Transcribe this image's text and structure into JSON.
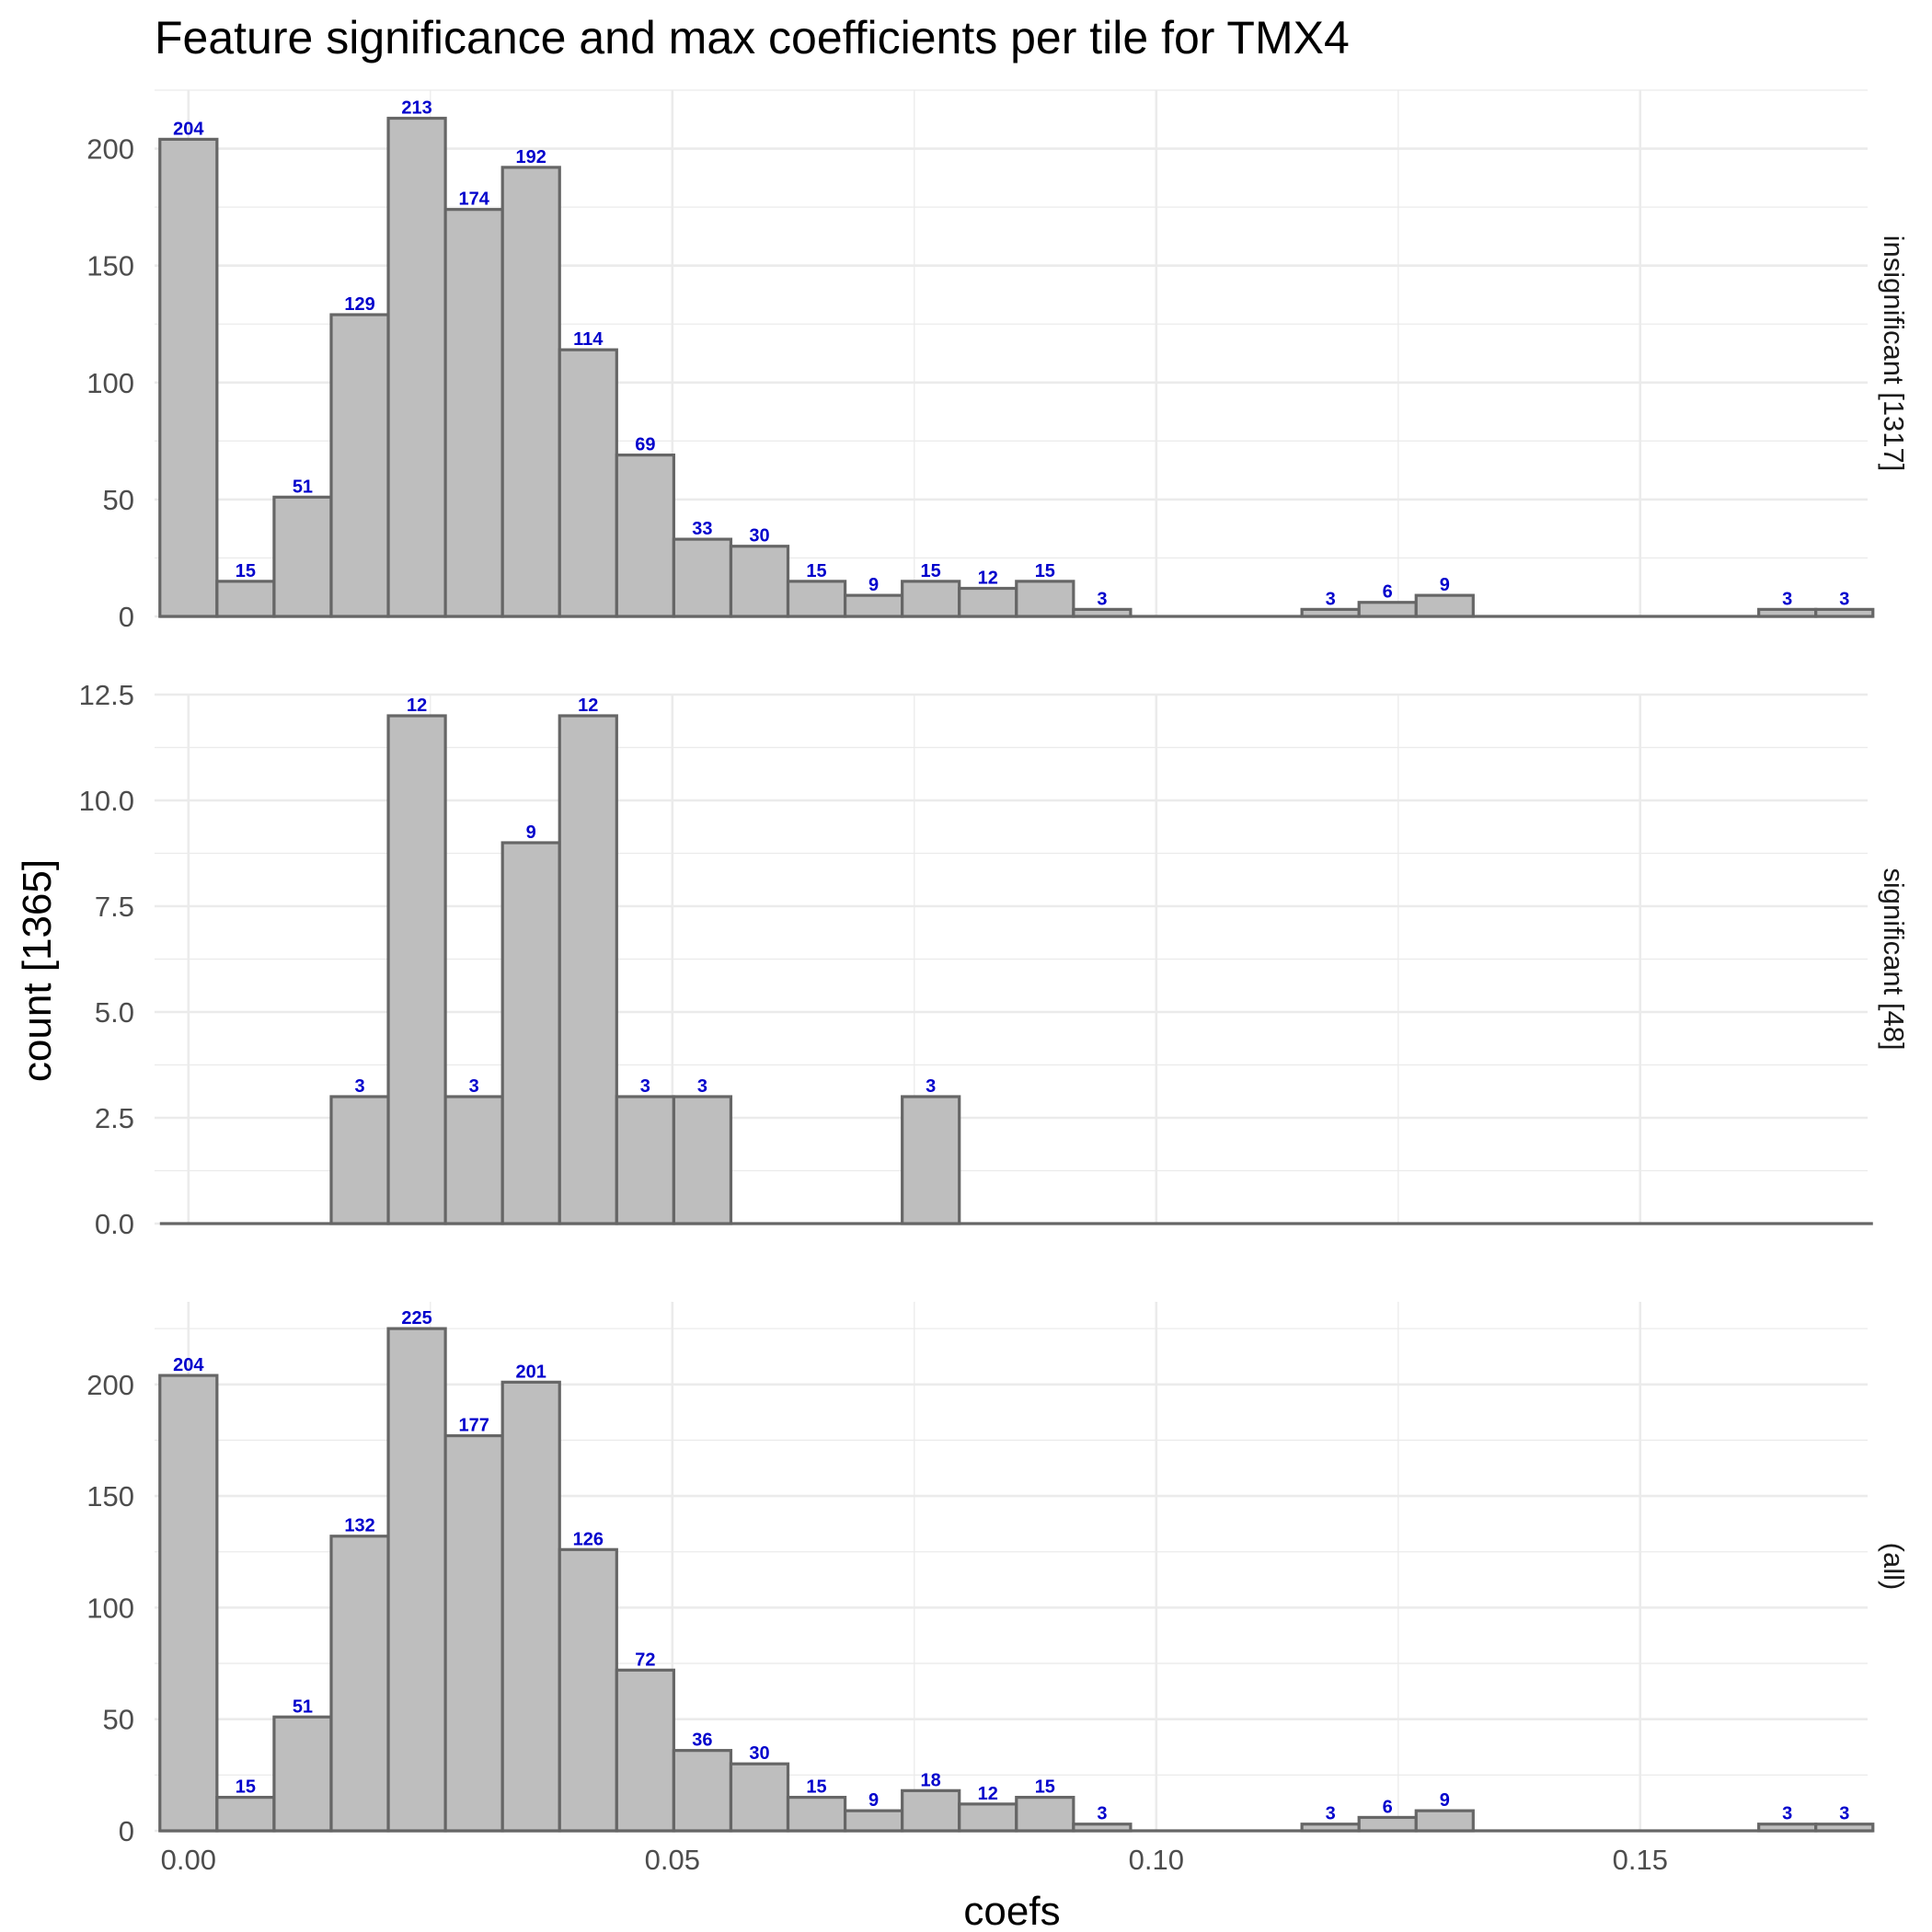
{
  "chart_data": {
    "type": "bar",
    "title": "Feature significance and max coefficients per tile for TMX4",
    "xlabel": "coefs",
    "ylabel": "count [1365]",
    "xlim": [
      -0.0035,
      0.1735
    ],
    "x_ticks": [
      "0.00",
      "0.05",
      "0.10",
      "0.15"
    ],
    "x_tick_values": [
      0,
      0.05,
      0.1,
      0.15
    ],
    "bin_width": 0.0059,
    "bin_start": -0.00295,
    "grid": true,
    "panels": [
      {
        "strip_label": "insignificant [1317]",
        "ylim": [
          0,
          225
        ],
        "y_ticks": [
          "0",
          "50",
          "100",
          "150",
          "200"
        ],
        "y_tick_values": [
          0,
          50,
          100,
          150,
          200
        ],
        "values": [
          204,
          15,
          51,
          129,
          213,
          174,
          192,
          114,
          69,
          33,
          30,
          15,
          9,
          15,
          12,
          15,
          3,
          0,
          0,
          0,
          3,
          6,
          9,
          0,
          0,
          0,
          0,
          0,
          3,
          3
        ]
      },
      {
        "strip_label": "significant [48]",
        "ylim": [
          0,
          12.5
        ],
        "y_ticks": [
          "0.0",
          "2.5",
          "5.0",
          "7.5",
          "10.0",
          "12.5"
        ],
        "y_tick_values": [
          0,
          2.5,
          5,
          7.5,
          10,
          12.5
        ],
        "values": [
          0,
          0,
          0,
          3,
          12,
          3,
          9,
          12,
          3,
          3,
          0,
          0,
          0,
          3,
          0,
          0,
          0,
          0,
          0,
          0,
          0,
          0,
          0,
          0,
          0,
          0,
          0,
          0,
          0,
          0
        ]
      },
      {
        "strip_label": "(all)",
        "ylim": [
          0,
          237
        ],
        "y_ticks": [
          "0",
          "50",
          "100",
          "150",
          "200"
        ],
        "y_tick_values": [
          0,
          50,
          100,
          150,
          200
        ],
        "values": [
          204,
          15,
          51,
          132,
          225,
          177,
          201,
          126,
          72,
          36,
          30,
          15,
          9,
          18,
          12,
          15,
          3,
          0,
          0,
          0,
          3,
          6,
          9,
          0,
          0,
          0,
          0,
          0,
          3,
          3
        ]
      }
    ],
    "colors": {
      "bar_fill": "#bebebe",
      "bar_outline": "#666666",
      "bar_label": "#0000cc",
      "grid": "#ebebeb"
    }
  }
}
